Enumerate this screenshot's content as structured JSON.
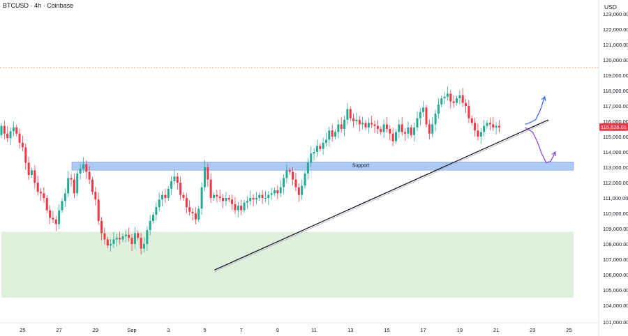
{
  "header": {
    "symbol": "BTCUSD",
    "interval": "4h",
    "exchange": "Coinbase",
    "sep": "·"
  },
  "price_axis": {
    "currency": "USD"
  },
  "chart_data": {
    "type": "candlestick",
    "ylim": [
      101000,
      124000
    ],
    "price_ticks": [
      "123,000.00",
      "122,000.00",
      "121,000.00",
      "120,000.00",
      "119,000.00",
      "118,000.00",
      "117,000.00",
      "116,000.00",
      "115,000.00",
      "114,000.00",
      "113,000.00",
      "112,000.00",
      "111,000.00",
      "110,000.00",
      "109,000.00",
      "108,000.00",
      "107,000.00",
      "106,000.00",
      "105,000.00",
      "104,000.00",
      "101,000.00"
    ],
    "date_ticks": [
      {
        "label": "25",
        "bar": 7
      },
      {
        "label": "27",
        "bar": 19
      },
      {
        "label": "29",
        "bar": 31
      },
      {
        "label": "Sep",
        "bar": 43
      },
      {
        "label": "3",
        "bar": 55
      },
      {
        "label": "5",
        "bar": 67
      },
      {
        "label": "7",
        "bar": 79
      },
      {
        "label": "9",
        "bar": 91
      },
      {
        "label": "11",
        "bar": 103
      },
      {
        "label": "13",
        "bar": 115
      },
      {
        "label": "15",
        "bar": 127
      },
      {
        "label": "17",
        "bar": 139
      },
      {
        "label": "19",
        "bar": 151
      },
      {
        "label": "21",
        "bar": 163
      },
      {
        "label": "23",
        "bar": 175
      },
      {
        "label": "25",
        "bar": 187
      }
    ],
    "last_price": {
      "label": "115,626.01",
      "value": 115626,
      "color": "#f23645"
    },
    "resistance_level": {
      "value": 119500,
      "color": "#f7a26f"
    },
    "support_zone": {
      "label": "Support",
      "top": 113300,
      "bottom": 112900,
      "from_bar": 22,
      "to_bar": 182,
      "color": "#90b8f0"
    },
    "demand_zone": {
      "top": 108800,
      "bottom": 104500,
      "from_bar": 0,
      "to_bar": 182,
      "color": "#dcefd8"
    },
    "trendline": {
      "x1": 38,
      "y1": 106300,
      "x2": 174,
      "y2": 116100
    },
    "bull_projection": [
      [
        165,
        115700
      ],
      [
        168,
        115800
      ],
      [
        170,
        116200
      ],
      [
        172,
        117500
      ],
      [
        174,
        117600
      ]
    ],
    "bear_projection": [
      [
        164,
        115500
      ],
      [
        167,
        115000
      ],
      [
        169,
        114300
      ],
      [
        171,
        113300
      ],
      [
        173,
        114000
      ]
    ],
    "colors": {
      "up": "#22ab94",
      "down": "#f23645",
      "bull_arrow": "#2962ff",
      "bear_arrow": "#7b3fe4",
      "trend": "#131722"
    },
    "closes": [
      115700,
      115200,
      114900,
      115350,
      115600,
      115200,
      114600,
      114300,
      113300,
      112500,
      112800,
      112000,
      111400,
      111300,
      111000,
      110200,
      109700,
      109600,
      109300,
      110200,
      110800,
      111300,
      112300,
      112200,
      111300,
      112600,
      112900,
      113200,
      112700,
      112200,
      111400,
      110900,
      109500,
      108700,
      108300,
      107900,
      108000,
      108300,
      108400,
      108300,
      108500,
      108600,
      108400,
      108000,
      108700,
      108400,
      107700,
      108000,
      108900,
      109500,
      109900,
      110400,
      110900,
      111200,
      111000,
      111600,
      112100,
      112400,
      112000,
      111200,
      111000,
      110400,
      110100,
      110000,
      109600,
      110300,
      111700,
      113000,
      112200,
      111000,
      111200,
      111100,
      111000,
      110800,
      111000,
      110900,
      110600,
      110200,
      110500,
      110200,
      110700,
      110800,
      111000,
      110900,
      111000,
      111200,
      111000,
      111000,
      111200,
      111300,
      111500,
      111300,
      111700,
      112300,
      112800,
      112700,
      112200,
      111700,
      111200,
      111800,
      112600,
      113300,
      113900,
      114000,
      114400,
      114200,
      114600,
      114800,
      115400,
      115000,
      115300,
      115800,
      115500,
      116100,
      116800,
      116200,
      116000,
      116100,
      115800,
      115900,
      115600,
      115900,
      115800,
      115700,
      115500,
      115300,
      115800,
      115500,
      115200,
      114700,
      115300,
      115800,
      115300,
      115200,
      115600,
      115100,
      115600,
      116200,
      116600,
      116900,
      115800,
      115200,
      115800,
      116500,
      117100,
      117500,
      117600,
      117800,
      117300,
      117200,
      117500,
      117700,
      117200,
      117000,
      116200,
      115900,
      115400,
      115000,
      115300,
      115700,
      115900,
      115800,
      115600,
      115700,
      115600
    ]
  }
}
